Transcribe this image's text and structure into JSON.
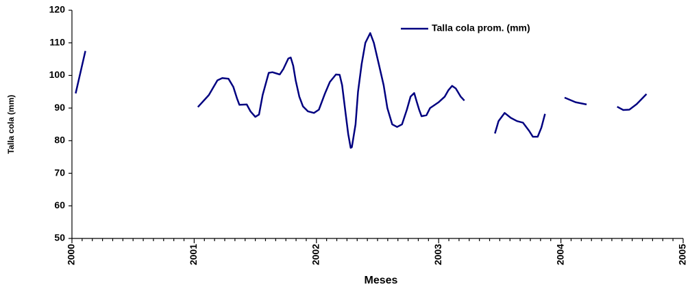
{
  "chart_data": {
    "type": "line",
    "xlabel": "Meses",
    "ylabel": "Talla cola (mm)",
    "xlim": [
      2000,
      2005
    ],
    "xticks": [
      2000,
      2001,
      2002,
      2003,
      2004,
      2005
    ],
    "ylim": [
      50,
      120
    ],
    "yticks": [
      50,
      60,
      70,
      80,
      90,
      100,
      110,
      120
    ],
    "legend": "upper right",
    "series": [
      {
        "name": "Talla cola prom. (mm)",
        "color": "#000080",
        "x": [
          2000.03,
          2000.11,
          2000.5,
          2001.03,
          2001.12,
          2001.19,
          2001.23,
          2001.28,
          2001.32,
          2001.35,
          2001.37,
          2001.43,
          2001.46,
          2001.5,
          2001.53,
          2001.56,
          2001.61,
          2001.64,
          2001.7,
          2001.73,
          2001.77,
          2001.79,
          2001.81,
          2001.83,
          2001.86,
          2001.89,
          2001.93,
          2001.98,
          2002.02,
          2002.07,
          2002.11,
          2002.16,
          2002.19,
          2002.21,
          2002.24,
          2002.26,
          2002.28,
          2002.29,
          2002.32,
          2002.34,
          2002.37,
          2002.4,
          2002.44,
          2002.47,
          2002.51,
          2002.55,
          2002.58,
          2002.62,
          2002.66,
          2002.7,
          2002.74,
          2002.77,
          2002.8,
          2002.82,
          2002.84,
          2002.86,
          2002.9,
          2002.93,
          2003.0,
          2003.05,
          2003.08,
          2003.11,
          2003.14,
          2003.18,
          2003.21,
          2003.33,
          2003.46,
          2003.49,
          2003.54,
          2003.59,
          2003.64,
          2003.69,
          2003.74,
          2003.77,
          2003.81,
          2003.84,
          2003.87,
          2003.95,
          2004.03,
          2004.12,
          2004.21,
          2004.33,
          2004.46,
          2004.51,
          2004.56,
          2004.62,
          2004.7
        ],
        "values": [
          94.5,
          107.5,
          null,
          90.3,
          94,
          98.5,
          99.2,
          99,
          96.5,
          93,
          91,
          91.1,
          89,
          87.3,
          88,
          94,
          100.8,
          101,
          100.3,
          102,
          105.2,
          105.5,
          103,
          98.5,
          93.5,
          90.5,
          89,
          88.5,
          89.5,
          94.5,
          98,
          100.3,
          100.2,
          97,
          88,
          82,
          77.8,
          78,
          85,
          95,
          103.5,
          110,
          113,
          110,
          103.5,
          97,
          90,
          85,
          84.2,
          85,
          89.5,
          93.5,
          94.6,
          92,
          89.5,
          87.5,
          87.8,
          90,
          91.8,
          93.5,
          95.5,
          96.8,
          96,
          93.5,
          92.3,
          null,
          82.2,
          86,
          88.5,
          87,
          86,
          85.5,
          83,
          81.2,
          81.2,
          84,
          88.2,
          null,
          93.2,
          91.8,
          91.1,
          null,
          90.4,
          89.4,
          89.5,
          91.2,
          94.3
        ]
      }
    ]
  }
}
